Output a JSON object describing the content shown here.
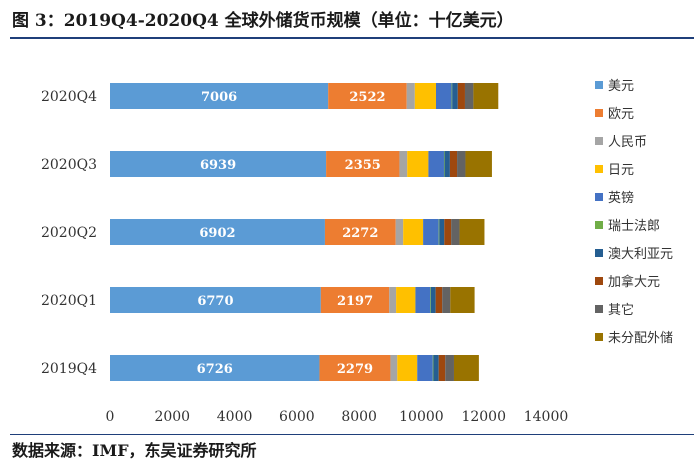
{
  "header": {
    "title": "图 3：2019Q4-2020Q4 全球外储货币规模（单位：十亿美元）"
  },
  "footer": {
    "source": "数据来源：IMF，东吴证券研究所"
  },
  "chart_data": {
    "type": "bar",
    "orientation": "horizontal",
    "stacked": true,
    "categories": [
      "2020Q4",
      "2020Q3",
      "2020Q2",
      "2020Q1",
      "2019Q4"
    ],
    "xlim": [
      0,
      14000
    ],
    "xticks": [
      0,
      2000,
      4000,
      6000,
      8000,
      10000,
      12000,
      14000
    ],
    "legend_position": "right",
    "grid": false,
    "series": [
      {
        "name": "美元",
        "color": "#5b9bd5",
        "values": [
          7006,
          6939,
          6902,
          6770,
          6726
        ],
        "labels": [
          "7006",
          "6939",
          "6902",
          "6770",
          "6726"
        ]
      },
      {
        "name": "欧元",
        "color": "#ed7d31",
        "values": [
          2522,
          2355,
          2272,
          2197,
          2279
        ],
        "labels": [
          "2522",
          "2355",
          "2272",
          "2197",
          "2279"
        ]
      },
      {
        "name": "人民币",
        "color": "#a5a5a5",
        "values": [
          260,
          250,
          240,
          220,
          220
        ]
      },
      {
        "name": "日元",
        "color": "#ffc000",
        "values": [
          680,
          680,
          640,
          620,
          640
        ]
      },
      {
        "name": "英镑",
        "color": "#4472c4",
        "values": [
          500,
          500,
          500,
          480,
          500
        ]
      },
      {
        "name": "瑞士法郎",
        "color": "#70ad47",
        "values": [
          20,
          20,
          20,
          20,
          20
        ]
      },
      {
        "name": "澳大利亚元",
        "color": "#255e91",
        "values": [
          180,
          170,
          160,
          150,
          170
        ]
      },
      {
        "name": "加拿大元",
        "color": "#9e480e",
        "values": [
          230,
          230,
          220,
          210,
          210
        ]
      },
      {
        "name": "其它",
        "color": "#636363",
        "values": [
          270,
          270,
          270,
          260,
          280
        ]
      },
      {
        "name": "未分配外储",
        "color": "#997300",
        "values": [
          800,
          850,
          800,
          780,
          800
        ]
      }
    ]
  }
}
